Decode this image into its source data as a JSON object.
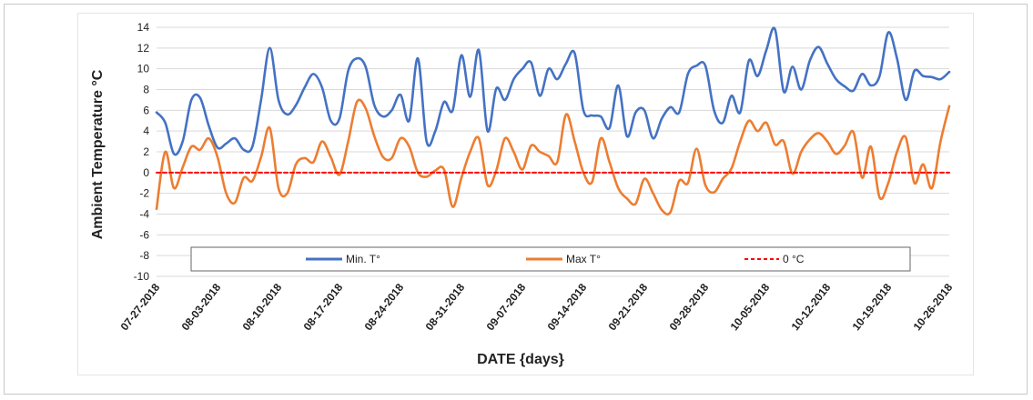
{
  "chart_data": {
    "type": "line",
    "xlabel": "DATE {days}",
    "ylabel": "Ambient Temperature °C",
    "ylim": [
      -10,
      14
    ],
    "yticks": [
      -10,
      -8,
      -6,
      -4,
      -2,
      0,
      2,
      4,
      6,
      8,
      10,
      12,
      14
    ],
    "x_tick_labels": [
      "07-27-2018",
      "08-03-2018",
      "08-10-2018",
      "08-17-2018",
      "08-24-2018",
      "08-31-2018",
      "09-07-2018",
      "09-14-2018",
      "09-21-2018",
      "09-28-2018",
      "10-05-2018",
      "10-12-2018",
      "10-19-2018",
      "10-26-2018"
    ],
    "x_start": "2018-07-27",
    "x_end": "2018-10-26",
    "grid": "horizontal",
    "legend_position": "bottom-inside",
    "series": [
      {
        "name": "Min. T°",
        "color": "#4472c4",
        "x": [
          "2018-07-27",
          "2018-07-28",
          "2018-07-29",
          "2018-07-30",
          "2018-07-31",
          "2018-08-01",
          "2018-08-02",
          "2018-08-03",
          "2018-08-04",
          "2018-08-05",
          "2018-08-06",
          "2018-08-07",
          "2018-08-08",
          "2018-08-09",
          "2018-08-10",
          "2018-08-11",
          "2018-08-12",
          "2018-08-13",
          "2018-08-14",
          "2018-08-15",
          "2018-08-16",
          "2018-08-17",
          "2018-08-18",
          "2018-08-19",
          "2018-08-20",
          "2018-08-21",
          "2018-08-22",
          "2018-08-23",
          "2018-08-24",
          "2018-08-25",
          "2018-08-26",
          "2018-08-27",
          "2018-08-28",
          "2018-08-29",
          "2018-08-30",
          "2018-08-31",
          "2018-09-01",
          "2018-09-02",
          "2018-09-03",
          "2018-09-04",
          "2018-09-05",
          "2018-09-06",
          "2018-09-07",
          "2018-09-08",
          "2018-09-09",
          "2018-09-10",
          "2018-09-11",
          "2018-09-12",
          "2018-09-13",
          "2018-09-14",
          "2018-09-15",
          "2018-09-16",
          "2018-09-17",
          "2018-09-18",
          "2018-09-19",
          "2018-09-20",
          "2018-09-21",
          "2018-09-22",
          "2018-09-23",
          "2018-09-24",
          "2018-09-25",
          "2018-09-26",
          "2018-09-27",
          "2018-09-28",
          "2018-09-29",
          "2018-09-30",
          "2018-10-01",
          "2018-10-02",
          "2018-10-03",
          "2018-10-04",
          "2018-10-05",
          "2018-10-06",
          "2018-10-07",
          "2018-10-08",
          "2018-10-09",
          "2018-10-10",
          "2018-10-11",
          "2018-10-12",
          "2018-10-13",
          "2018-10-14",
          "2018-10-15",
          "2018-10-16",
          "2018-10-17",
          "2018-10-18",
          "2018-10-19",
          "2018-10-20",
          "2018-10-21",
          "2018-10-22",
          "2018-10-23",
          "2018-10-24",
          "2018-10-25",
          "2018-10-26"
        ],
        "y": [
          5.8,
          4.8,
          1.8,
          3.0,
          7.0,
          7.2,
          4.5,
          2.4,
          2.8,
          3.3,
          2.2,
          2.5,
          7.0,
          12.0,
          7.0,
          5.6,
          6.5,
          8.2,
          9.5,
          8.2,
          5.0,
          5.2,
          9.8,
          11.0,
          10.2,
          6.5,
          5.4,
          6.0,
          7.5,
          5.0,
          11.0,
          3.0,
          4.0,
          6.8,
          6.0,
          11.3,
          7.3,
          11.8,
          4.0,
          8.1,
          7.0,
          9.0,
          10.0,
          10.6,
          7.4,
          10.0,
          9.0,
          10.5,
          11.5,
          6.0,
          5.5,
          5.4,
          4.3,
          8.4,
          3.5,
          5.8,
          6.0,
          3.3,
          5.2,
          6.3,
          5.8,
          9.5,
          10.3,
          10.3,
          6.0,
          4.8,
          7.4,
          5.8,
          10.8,
          9.3,
          11.8,
          13.8,
          7.8,
          10.2,
          8.0,
          10.8,
          12.1,
          10.5,
          9.0,
          8.3,
          7.9,
          9.5,
          8.4,
          9.3,
          13.5,
          11.0,
          7.0,
          9.8,
          9.3,
          9.2,
          9.0,
          9.7
        ]
      },
      {
        "name": "Max T°",
        "color": "#ed7d31",
        "x": [
          "2018-07-27",
          "2018-07-28",
          "2018-07-29",
          "2018-07-30",
          "2018-07-31",
          "2018-08-01",
          "2018-08-02",
          "2018-08-03",
          "2018-08-04",
          "2018-08-05",
          "2018-08-06",
          "2018-08-07",
          "2018-08-08",
          "2018-08-09",
          "2018-08-10",
          "2018-08-11",
          "2018-08-12",
          "2018-08-13",
          "2018-08-14",
          "2018-08-15",
          "2018-08-16",
          "2018-08-17",
          "2018-08-18",
          "2018-08-19",
          "2018-08-20",
          "2018-08-21",
          "2018-08-22",
          "2018-08-23",
          "2018-08-24",
          "2018-08-25",
          "2018-08-26",
          "2018-08-27",
          "2018-08-28",
          "2018-08-29",
          "2018-08-30",
          "2018-08-31",
          "2018-09-01",
          "2018-09-02",
          "2018-09-03",
          "2018-09-04",
          "2018-09-05",
          "2018-09-06",
          "2018-09-07",
          "2018-09-08",
          "2018-09-09",
          "2018-09-10",
          "2018-09-11",
          "2018-09-12",
          "2018-09-13",
          "2018-09-14",
          "2018-09-15",
          "2018-09-16",
          "2018-09-17",
          "2018-09-18",
          "2018-09-19",
          "2018-09-20",
          "2018-09-21",
          "2018-09-22",
          "2018-09-23",
          "2018-09-24",
          "2018-09-25",
          "2018-09-26",
          "2018-09-27",
          "2018-09-28",
          "2018-09-29",
          "2018-09-30",
          "2018-10-01",
          "2018-10-02",
          "2018-10-03",
          "2018-10-04",
          "2018-10-05",
          "2018-10-06",
          "2018-10-07",
          "2018-10-08",
          "2018-10-09",
          "2018-10-10",
          "2018-10-11",
          "2018-10-12",
          "2018-10-13",
          "2018-10-14",
          "2018-10-15",
          "2018-10-16",
          "2018-10-17",
          "2018-10-18",
          "2018-10-19",
          "2018-10-20",
          "2018-10-21",
          "2018-10-22",
          "2018-10-23",
          "2018-10-24",
          "2018-10-25",
          "2018-10-26"
        ],
        "y": [
          -3.5,
          2.0,
          -1.5,
          0.5,
          2.5,
          2.2,
          3.3,
          1.5,
          -2.0,
          -2.9,
          -0.5,
          -0.8,
          1.5,
          4.3,
          -1.5,
          -2.0,
          0.8,
          1.4,
          1.0,
          3.0,
          1.5,
          -0.2,
          3.0,
          6.8,
          6.2,
          3.5,
          1.5,
          1.4,
          3.3,
          2.5,
          0.0,
          -0.4,
          0.2,
          0.3,
          -3.3,
          -0.5,
          2.0,
          3.3,
          -1.2,
          0.2,
          3.3,
          2.0,
          0.3,
          2.6,
          2.0,
          1.6,
          1.0,
          5.6,
          3.0,
          0.0,
          -0.9,
          3.3,
          1.0,
          -1.5,
          -2.5,
          -3.0,
          -0.6,
          -2.0,
          -3.6,
          -3.8,
          -0.8,
          -1.0,
          2.3,
          -1.2,
          -1.9,
          -0.6,
          0.4,
          3.0,
          5.0,
          4.0,
          4.8,
          2.7,
          3.0,
          -0.1,
          2.0,
          3.2,
          3.8,
          3.0,
          1.8,
          2.6,
          3.9,
          -0.5,
          2.5,
          -2.4,
          -1.0,
          2.0,
          3.4,
          -1.0,
          0.8,
          -1.5,
          3.0,
          6.4
        ]
      },
      {
        "name": "0 °C",
        "color": "#ff0000",
        "style": "dashed",
        "x": [
          "2018-07-27",
          "2018-10-26"
        ],
        "y": [
          0,
          0
        ]
      }
    ]
  }
}
